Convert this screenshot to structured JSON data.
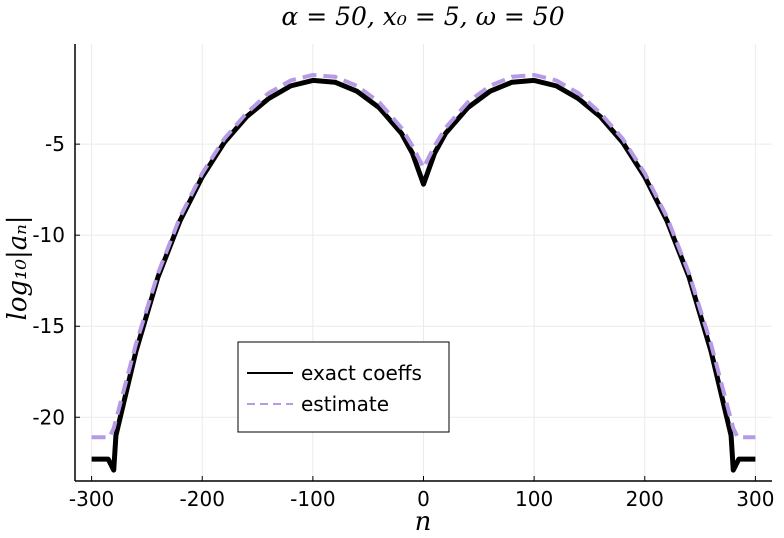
{
  "chart_data": {
    "type": "line",
    "title": "α = 50, x₀ = 5, ω = 50",
    "xlabel": "n",
    "ylabel": "log₁₀|aₙ|",
    "xlim": [
      -315,
      315
    ],
    "ylim": [
      -23.5,
      0.5
    ],
    "xticks": [
      -300,
      -200,
      -100,
      0,
      100,
      200,
      300
    ],
    "xtick_labels": [
      "-300",
      "-200",
      "-100",
      "0",
      "100",
      "200",
      "300"
    ],
    "yticks": [
      -5,
      -10,
      -15,
      -20
    ],
    "ytick_labels": [
      "-5",
      "-10",
      "-15",
      "-20"
    ],
    "grid": true,
    "legend_position": "lower-left",
    "series": [
      {
        "name": "exact coeffs",
        "style": "solid",
        "color": "#000000",
        "x": [
          -300,
          -285,
          -280,
          -278,
          -260,
          -240,
          -220,
          -200,
          -180,
          -160,
          -140,
          -120,
          -100,
          -80,
          -60,
          -40,
          -20,
          -10,
          0,
          10,
          20,
          40,
          60,
          80,
          100,
          120,
          140,
          160,
          180,
          200,
          220,
          240,
          260,
          278,
          280,
          285,
          300
        ],
        "y": [
          -22.3,
          -22.3,
          -22.9,
          -21.0,
          -16.4,
          -12.3,
          -9.2,
          -6.8,
          -4.9,
          -3.5,
          -2.5,
          -1.8,
          -1.5,
          -1.6,
          -2.1,
          -3.0,
          -4.4,
          -5.5,
          -7.2,
          -5.5,
          -4.4,
          -3.0,
          -2.1,
          -1.6,
          -1.5,
          -1.8,
          -2.5,
          -3.5,
          -4.9,
          -6.8,
          -9.2,
          -12.3,
          -16.4,
          -21.0,
          -22.9,
          -22.3,
          -22.3
        ]
      },
      {
        "name": "estimate",
        "style": "dashed",
        "color": "#b79ae6",
        "x": [
          -300,
          -284,
          -280,
          -260,
          -240,
          -220,
          -200,
          -180,
          -160,
          -140,
          -120,
          -100,
          -80,
          -60,
          -40,
          -20,
          -10,
          0,
          10,
          20,
          40,
          60,
          80,
          100,
          120,
          140,
          160,
          180,
          200,
          220,
          240,
          260,
          280,
          284,
          300
        ],
        "y": [
          -21.1,
          -21.1,
          -20.6,
          -16.0,
          -12.1,
          -9.0,
          -6.6,
          -4.7,
          -3.3,
          -2.2,
          -1.5,
          -1.2,
          -1.3,
          -1.8,
          -2.7,
          -4.1,
          -5.1,
          -6.3,
          -5.1,
          -4.1,
          -2.7,
          -1.8,
          -1.3,
          -1.2,
          -1.5,
          -2.2,
          -3.3,
          -4.7,
          -6.6,
          -9.0,
          -12.1,
          -16.0,
          -20.6,
          -21.1,
          -21.1
        ]
      }
    ]
  }
}
